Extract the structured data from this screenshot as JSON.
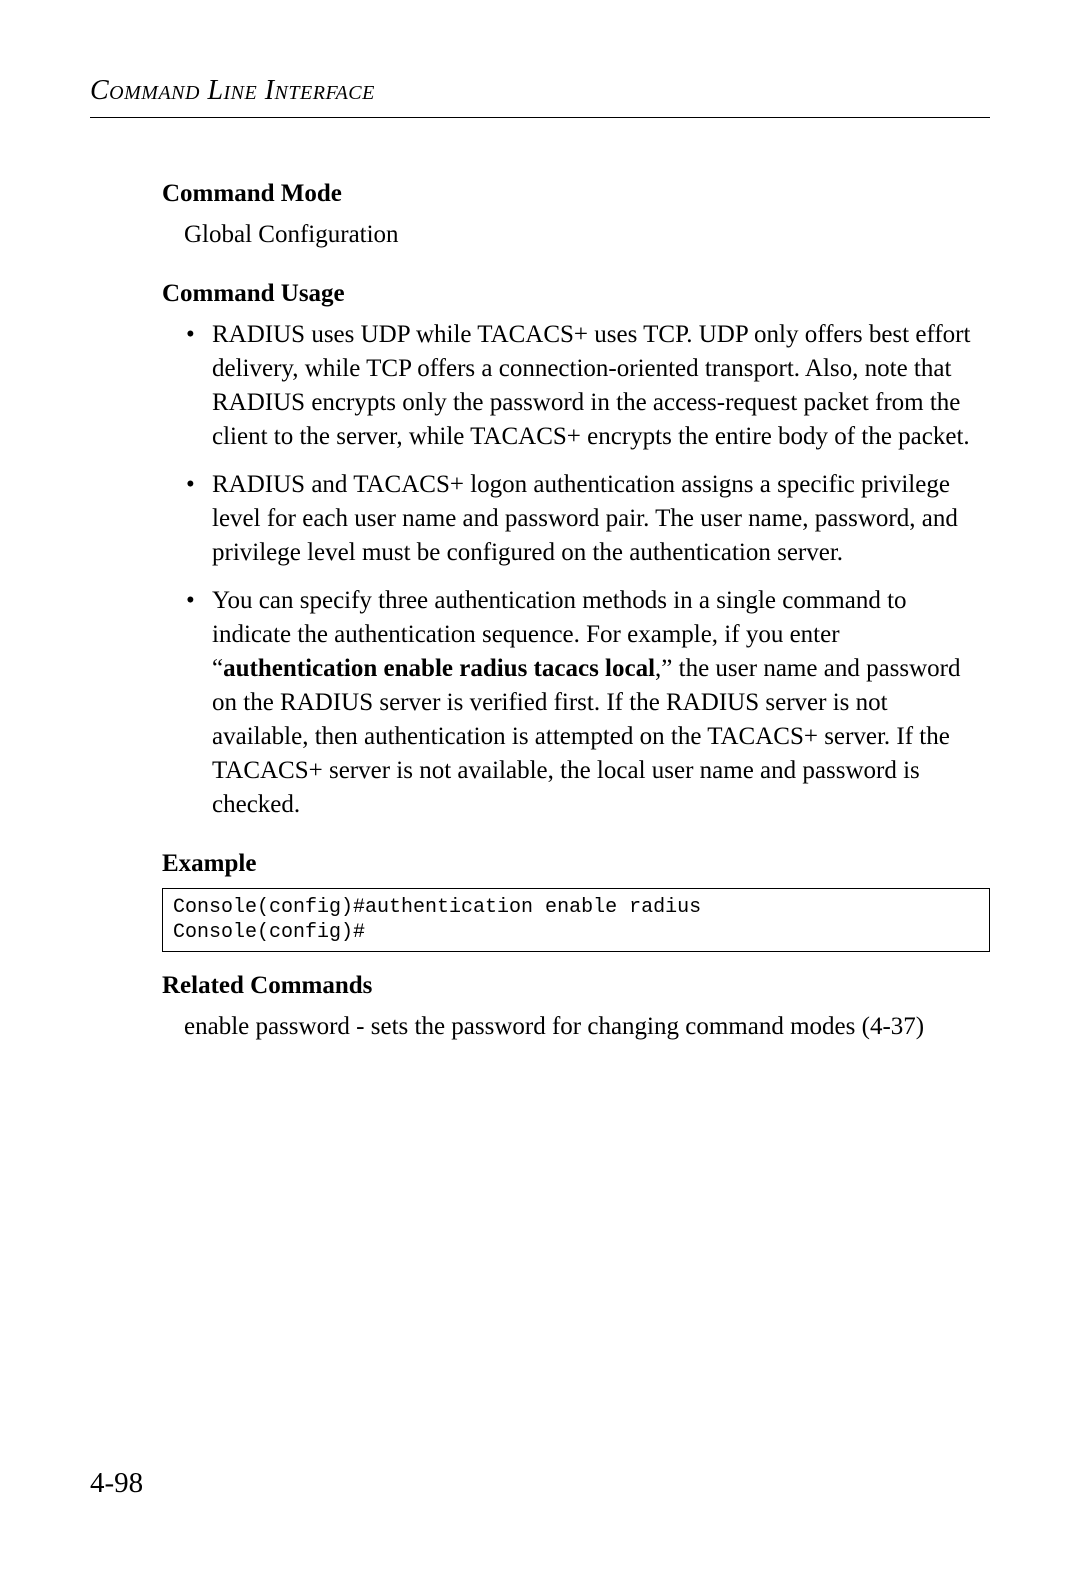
{
  "header": {
    "text": "Command Line Interface"
  },
  "sections": {
    "command_mode": {
      "heading": "Command Mode",
      "body": "Global Configuration"
    },
    "command_usage": {
      "heading": "Command Usage",
      "bullets": [
        {
          "text": "RADIUS uses UDP while TACACS+ uses TCP. UDP only offers best effort delivery, while TCP offers a connection-oriented transport. Also, note that RADIUS encrypts only the password in the access-request packet from the client to the server, while TACACS+ encrypts the entire body of the packet."
        },
        {
          "text": "RADIUS and TACACS+ logon authentication assigns a specific privilege level for each user name and password pair. The user name, password, and privilege level must be configured on the authentication server."
        },
        {
          "pre": "You can specify three authentication methods in a single command to indicate the authentication sequence. For example, if you enter “",
          "bold": "authentication enable radius tacacs local",
          "post": ",” the user name and password on the RADIUS server is verified first. If the RADIUS server is not available, then authentication is attempted on the TACACS+ server. If the TACACS+ server is not available, the local user name and password is checked."
        }
      ]
    },
    "example": {
      "heading": "Example",
      "code": "Console(config)#authentication enable radius\nConsole(config)#"
    },
    "related_commands": {
      "heading": "Related Commands",
      "body": "enable password -  sets the password for changing command modes (4-37)"
    }
  },
  "page_number": "4-98"
}
